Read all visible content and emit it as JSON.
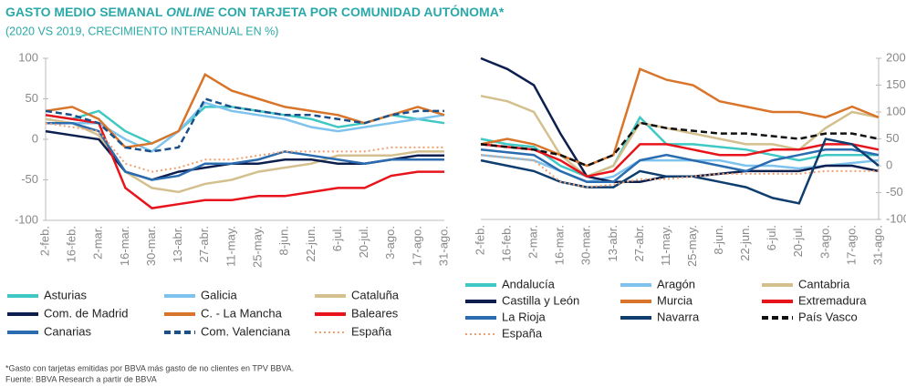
{
  "title_parts": [
    "GASTO MEDIO SEMANAL ",
    "ONLINE",
    " CON TARJETA POR COMUNIDAD AUTÓNOMA*"
  ],
  "subtitle": "(2020 VS 2019, CRECIMIENTO INTERANUAL EN %)",
  "footnotes": [
    "*Gasto con tarjetas emitidas por BBVA más gasto de no clientes en TPV BBVA.",
    "Fuente: BBVA Research a partir de BBVA"
  ],
  "chart_data": [
    {
      "type": "line",
      "categories": [
        "2-feb.",
        "16-feb.",
        "2-mar.",
        "16-mar.",
        "30-mar.",
        "13-abr.",
        "27-abr.",
        "11-may.",
        "25-may.",
        "8-jun.",
        "22-jun.",
        "6-jul.",
        "20-jul.",
        "3-ago.",
        "17-ago.",
        "31-ago."
      ],
      "ylim": [
        -100,
        100
      ],
      "yticks": [
        -100,
        -50,
        0,
        50,
        100
      ],
      "series": [
        {
          "name": "Asturias",
          "color": "#3fc8c4",
          "values": [
            30,
            25,
            35,
            10,
            -5,
            10,
            40,
            40,
            35,
            30,
            25,
            15,
            20,
            30,
            25,
            20
          ]
        },
        {
          "name": "Galicia",
          "color": "#7ec3ee",
          "values": [
            25,
            20,
            20,
            0,
            -15,
            10,
            45,
            35,
            30,
            25,
            15,
            10,
            15,
            20,
            25,
            30
          ]
        },
        {
          "name": "Cataluña",
          "color": "#d4c08f",
          "values": [
            25,
            20,
            5,
            -40,
            -60,
            -65,
            -55,
            -50,
            -40,
            -35,
            -30,
            -20,
            -20,
            -20,
            -15,
            -15
          ]
        },
        {
          "name": "Com. de Madrid",
          "color": "#0c1f4f",
          "values": [
            10,
            5,
            0,
            -40,
            -50,
            -40,
            -35,
            -30,
            -30,
            -25,
            -25,
            -30,
            -30,
            -25,
            -20,
            -20
          ]
        },
        {
          "name": "C. - La Mancha",
          "color": "#d9752a",
          "values": [
            35,
            40,
            25,
            -10,
            -5,
            10,
            80,
            60,
            50,
            40,
            35,
            30,
            20,
            30,
            40,
            30
          ]
        },
        {
          "name": "Baleares",
          "color": "#e8141b",
          "values": [
            30,
            25,
            20,
            -60,
            -85,
            -80,
            -75,
            -75,
            -70,
            -70,
            -65,
            -60,
            -60,
            -45,
            -40,
            -40
          ]
        },
        {
          "name": "Canarias",
          "color": "#2b6cb0",
          "values": [
            20,
            20,
            10,
            -40,
            -50,
            -45,
            -30,
            -30,
            -25,
            -15,
            -20,
            -25,
            -30,
            -25,
            -25,
            -25
          ]
        },
        {
          "name": "Com. Valenciana",
          "color": "#1b4f8a",
          "dash": "dashed",
          "values": [
            35,
            30,
            20,
            -10,
            -15,
            -10,
            50,
            40,
            35,
            30,
            30,
            25,
            20,
            30,
            35,
            35
          ]
        },
        {
          "name": "España",
          "color": "#f0a070",
          "dash": "dotted",
          "values": [
            20,
            15,
            10,
            -30,
            -40,
            -35,
            -25,
            -25,
            -20,
            -15,
            -15,
            -15,
            -15,
            -10,
            -10,
            -10
          ]
        }
      ]
    },
    {
      "type": "line",
      "categories": [
        "2-feb.",
        "16-feb.",
        "2-mar.",
        "16-mar.",
        "30-mar.",
        "13-abr.",
        "27-abr.",
        "11-may.",
        "25-may.",
        "8-jun.",
        "22-jun.",
        "6-jul.",
        "20-jul.",
        "3-ago.",
        "17-ago.",
        "31-ago."
      ],
      "ylim": [
        -100,
        200
      ],
      "yticks": [
        -100,
        -50,
        0,
        50,
        100,
        150,
        200
      ],
      "series": [
        {
          "name": "Andalucía",
          "color": "#3fc8c4",
          "values": [
            50,
            40,
            35,
            0,
            -20,
            0,
            90,
            40,
            40,
            35,
            30,
            20,
            10,
            20,
            20,
            20
          ]
        },
        {
          "name": "Aragón",
          "color": "#7ec3ee",
          "values": [
            20,
            15,
            10,
            -10,
            -30,
            -20,
            10,
            10,
            10,
            10,
            0,
            0,
            -5,
            0,
            5,
            10
          ]
        },
        {
          "name": "Cantabria",
          "color": "#d4c08f",
          "values": [
            130,
            120,
            100,
            20,
            -20,
            0,
            80,
            70,
            60,
            50,
            40,
            40,
            30,
            70,
            100,
            90
          ]
        },
        {
          "name": "Castilla y León",
          "color": "#0c1f4f",
          "values": [
            200,
            180,
            150,
            60,
            -20,
            -30,
            -30,
            -20,
            -20,
            -15,
            -10,
            -10,
            -10,
            0,
            0,
            -10
          ]
        },
        {
          "name": "Murcia",
          "color": "#d9752a",
          "values": [
            40,
            50,
            40,
            20,
            0,
            20,
            180,
            160,
            150,
            120,
            110,
            100,
            100,
            90,
            110,
            90
          ]
        },
        {
          "name": "Extremadura",
          "color": "#e8141b",
          "values": [
            40,
            35,
            30,
            10,
            -20,
            -10,
            40,
            40,
            30,
            20,
            20,
            30,
            30,
            40,
            40,
            30
          ]
        },
        {
          "name": "La Rioja",
          "color": "#2b6cb0",
          "values": [
            30,
            25,
            20,
            -10,
            -30,
            -30,
            10,
            20,
            10,
            0,
            -10,
            10,
            20,
            30,
            30,
            20
          ]
        },
        {
          "name": "Navarra",
          "color": "#0e3d6e",
          "values": [
            10,
            0,
            -10,
            -30,
            -40,
            -40,
            -10,
            -20,
            -20,
            -30,
            -40,
            -60,
            -70,
            50,
            40,
            0
          ]
        },
        {
          "name": "País Vasco",
          "color": "#111111",
          "dash": "dashed",
          "values": [
            40,
            35,
            30,
            20,
            0,
            20,
            80,
            70,
            65,
            60,
            60,
            55,
            50,
            60,
            60,
            50
          ]
        },
        {
          "name": "España",
          "color": "#f0a070",
          "dash": "dotted",
          "values": [
            20,
            15,
            10,
            -30,
            -40,
            -35,
            -25,
            -25,
            -20,
            -15,
            -15,
            -15,
            -15,
            -10,
            -10,
            -10
          ]
        }
      ]
    }
  ]
}
